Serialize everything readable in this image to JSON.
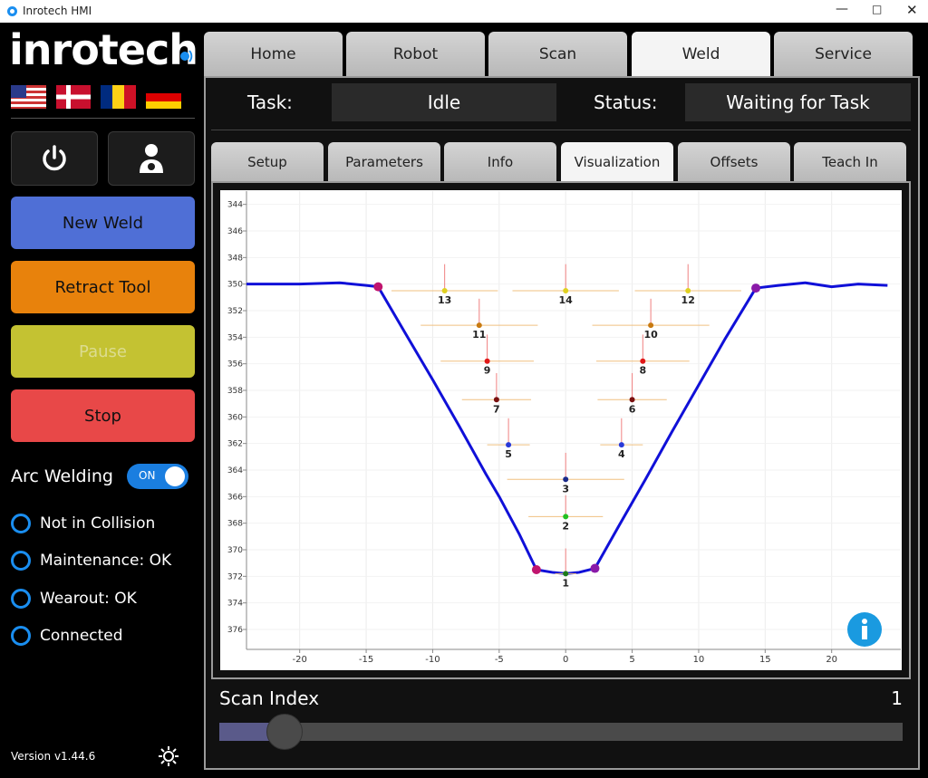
{
  "window": {
    "title": "Inrotech HMI"
  },
  "sidebar": {
    "logo": "inrotech",
    "buttons": [
      "New Weld",
      "Retract Tool",
      "Pause",
      "Stop"
    ],
    "arc_welding": {
      "label": "Arc Welding",
      "toggle": "ON"
    },
    "status": [
      "Not in Collision",
      "Maintenance: OK",
      "Wearout: OK",
      "Connected"
    ],
    "version": "Version v1.44.6"
  },
  "tabs": [
    "Home",
    "Robot",
    "Scan",
    "Weld",
    "Service"
  ],
  "task_row": {
    "task_label": "Task:",
    "task_value": "Idle",
    "status_label": "Status:",
    "status_value": "Waiting for Task"
  },
  "subtabs": [
    "Setup",
    "Parameters",
    "Info",
    "Visualization",
    "Offsets",
    "Teach In"
  ],
  "chart_data": {
    "type": "line",
    "xlim": [
      -24,
      25.2
    ],
    "ylim": [
      343,
      377.5
    ],
    "y_inverted": true,
    "grid": true,
    "xticks": [
      -20,
      -15,
      -10,
      -5,
      0,
      5,
      10,
      15,
      20
    ],
    "yticks": [
      344,
      346,
      348,
      350,
      352,
      354,
      356,
      358,
      360,
      362,
      364,
      366,
      368,
      370,
      372,
      374,
      376
    ],
    "series": [
      {
        "color": "#1010d8",
        "x": [
          -24,
          -20,
          -17,
          -15,
          -14.1,
          -12,
          -10,
          -8,
          -6,
          -5,
          -3.5,
          -2.2,
          -1,
          0,
          1,
          2.2,
          4,
          6,
          8,
          10,
          12,
          14.3,
          16,
          18,
          20,
          22,
          24.2
        ],
        "values": [
          350,
          350,
          349.9,
          350.1,
          350.2,
          353.8,
          357.2,
          360.7,
          364.3,
          366,
          368.8,
          371.5,
          371.7,
          371.8,
          371.7,
          371.4,
          368.2,
          364.7,
          361.1,
          357.6,
          354.1,
          350.3,
          350.1,
          349.9,
          350.2,
          350,
          350.1
        ]
      }
    ],
    "corners": {
      "x": [
        -14.1,
        -2.2,
        2.2,
        14.3
      ],
      "values": [
        350.2,
        371.5,
        371.4,
        350.3
      ],
      "colors": [
        "#c0146e",
        "#c0146e",
        "#8a1aa8",
        "#8a1aa8"
      ]
    },
    "beads": [
      {
        "label": "1",
        "x": 0,
        "y": 371.8,
        "color": "#1a7a1a",
        "width": 0.8,
        "height": 1.9
      },
      {
        "label": "2",
        "x": 0,
        "y": 367.5,
        "color": "#22c022",
        "width": 2.8,
        "height": 1.6
      },
      {
        "label": "3",
        "x": 0,
        "y": 364.7,
        "color": "#1a2a8a",
        "width": 4.4,
        "height": 2
      },
      {
        "label": "4",
        "x": 4.2,
        "y": 362.1,
        "color": "#2a3ad8",
        "width": 1.6,
        "height": 2
      },
      {
        "label": "5",
        "x": -4.3,
        "y": 362.1,
        "color": "#2a3ad8",
        "width": 1.6,
        "height": 2
      },
      {
        "label": "6",
        "x": 5,
        "y": 358.7,
        "color": "#7a1010",
        "width": 2.6,
        "height": 2
      },
      {
        "label": "7",
        "x": -5.2,
        "y": 358.7,
        "color": "#7a1010",
        "width": 2.6,
        "height": 2
      },
      {
        "label": "8",
        "x": 5.8,
        "y": 355.8,
        "color": "#e01818",
        "width": 3.5,
        "height": 2
      },
      {
        "label": "9",
        "x": -5.9,
        "y": 355.8,
        "color": "#e01818",
        "width": 3.5,
        "height": 2
      },
      {
        "label": "10",
        "x": 6.4,
        "y": 353.1,
        "color": "#c87a10",
        "width": 4.4,
        "height": 2
      },
      {
        "label": "11",
        "x": -6.5,
        "y": 353.1,
        "color": "#c87a10",
        "width": 4.4,
        "height": 2
      },
      {
        "label": "12",
        "x": 9.2,
        "y": 350.5,
        "color": "#e0d020",
        "width": 4,
        "height": 2
      },
      {
        "label": "13",
        "x": -9.1,
        "y": 350.5,
        "color": "#e0d020",
        "width": 4,
        "height": 2
      },
      {
        "label": "14",
        "x": 0,
        "y": 350.5,
        "color": "#e0d020",
        "width": 4,
        "height": 2
      }
    ]
  },
  "scan_index": {
    "label": "Scan Index",
    "value": 1
  }
}
